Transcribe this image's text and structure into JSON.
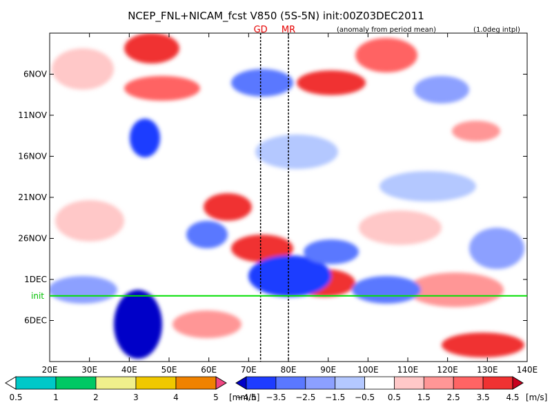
{
  "header": {
    "title": "NCEP_FNL+NICAM_fcst V850 (5S-5N) init:00Z03DEC2011",
    "subtitle": "(anomaly from period mean)",
    "interp_note": "(1.0deg intpl)"
  },
  "chart_data": {
    "type": "heatmap",
    "title": "NCEP_FNL+NICAM_fcst V850 (5S-5N) init:00Z03DEC2011",
    "x_ticks": [
      "20E",
      "30E",
      "40E",
      "50E",
      "60E",
      "70E",
      "80E",
      "90E",
      "100E",
      "110E",
      "120E",
      "130E",
      "140E"
    ],
    "x_range": [
      20,
      140
    ],
    "y_ticks": [
      "6NOV",
      "11NOV",
      "16NOV",
      "21NOV",
      "26NOV",
      "1DEC",
      "6DEC"
    ],
    "y_tick_days": [
      6,
      11,
      16,
      21,
      26,
      31,
      36
    ],
    "y_range": [
      1,
      41
    ],
    "init": {
      "label": "init",
      "day": 33
    },
    "markers": [
      {
        "label": "GD",
        "lon": 73
      },
      {
        "label": "MR",
        "lon": 80
      }
    ],
    "colorbars": [
      {
        "units": "[mm/h]",
        "labels": [
          "0.5",
          "1",
          "2",
          "3",
          "4",
          "5"
        ],
        "colors": [
          "#ffffff",
          "#00c8c8",
          "#00c864",
          "#f0f08c",
          "#f0c800",
          "#f08200",
          "#f04682"
        ]
      },
      {
        "units": "[m/s]",
        "labels": [
          "−4.5",
          "−3.5",
          "−2.5",
          "−1.5",
          "−0.5",
          "0.5",
          "1.5",
          "2.5",
          "3.5",
          "4.5"
        ],
        "colors": [
          "#0000c8",
          "#1e3cff",
          "#5a78ff",
          "#8ca0ff",
          "#b4c8ff",
          "#ffffff",
          "#ffc8c8",
          "#ff9696",
          "#ff6464",
          "#f03232",
          "#c8001e"
        ]
      }
    ]
  }
}
